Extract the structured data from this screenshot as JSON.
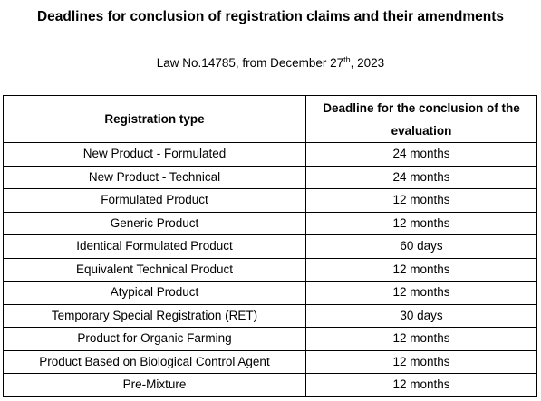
{
  "title": "Deadlines for conclusion of registration claims and their amendments",
  "subtitle": {
    "prefix": "Law No.14785, from December 27",
    "superscript": "th",
    "suffix": ", 2023"
  },
  "table": {
    "headers": {
      "registration_type": "Registration type",
      "deadline": "Deadline for the conclusion of the evaluation"
    },
    "rows": [
      {
        "type": "New Product - Formulated",
        "deadline": "24 months"
      },
      {
        "type": "New Product - Technical",
        "deadline": "24 months"
      },
      {
        "type": "Formulated Product",
        "deadline": "12 months"
      },
      {
        "type": "Generic Product",
        "deadline": "12 months"
      },
      {
        "type": "Identical Formulated Product",
        "deadline": "60 days"
      },
      {
        "type": "Equivalent Technical Product",
        "deadline": "12 months"
      },
      {
        "type": "Atypical Product",
        "deadline": "12 months"
      },
      {
        "type": "Temporary Special Registration (RET)",
        "deadline": "30 days"
      },
      {
        "type": "Product for Organic Farming",
        "deadline": "12 months"
      },
      {
        "type": "Product Based on Biological Control Agent",
        "deadline": "12 months"
      },
      {
        "type": "Pre-Mixture",
        "deadline": "12 months"
      }
    ]
  }
}
